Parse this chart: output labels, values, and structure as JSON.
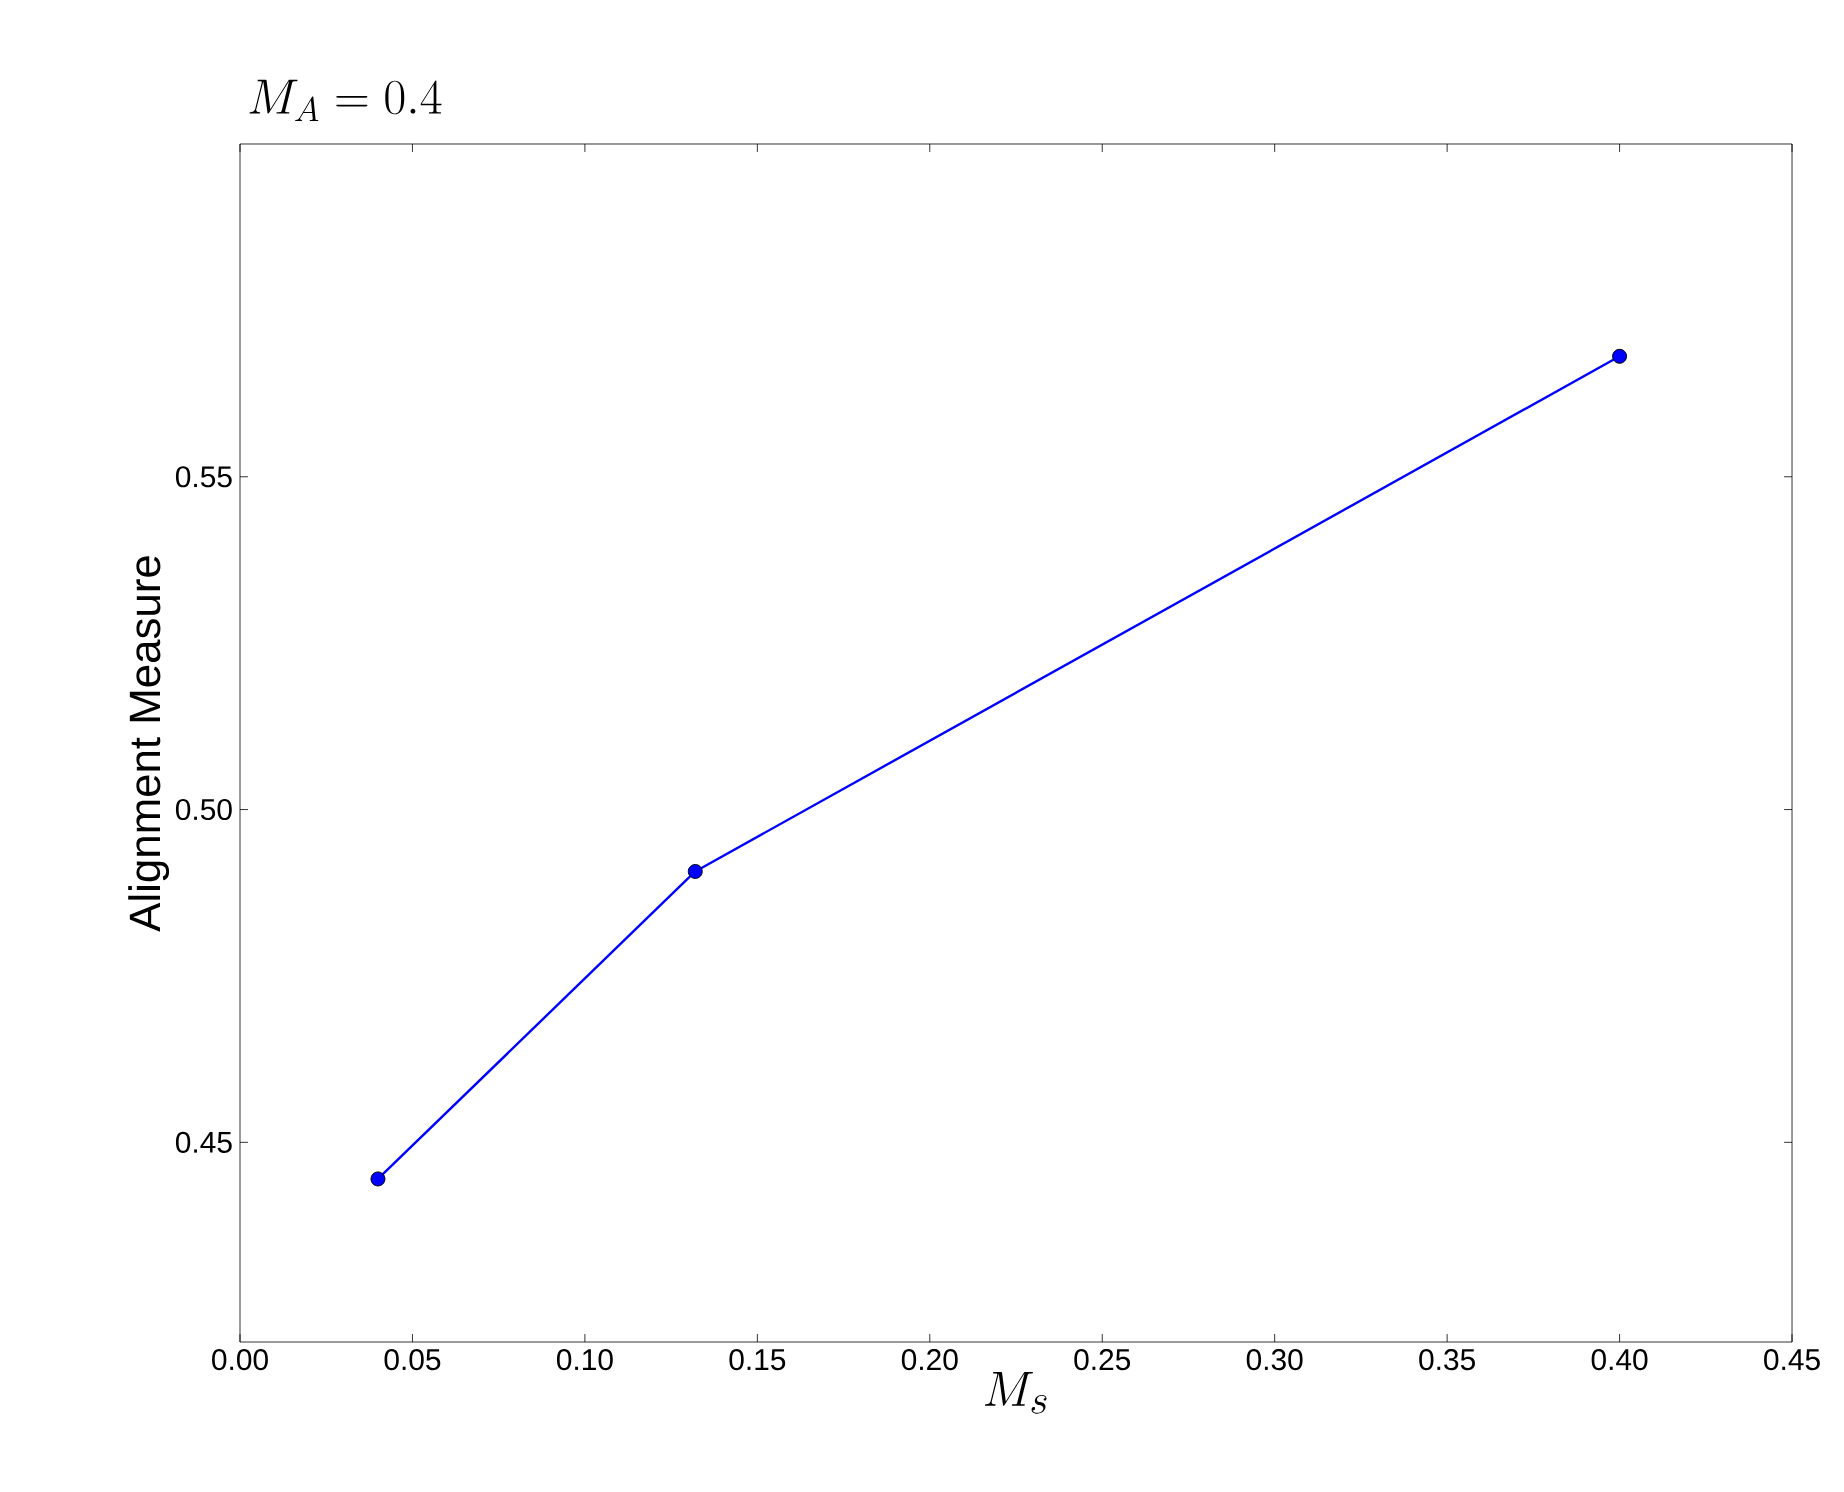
{
  "chart_data": {
    "type": "line",
    "title": "M_A = 0.4",
    "xlabel": "M_s",
    "ylabel": "Alignment Measure",
    "x": [
      0.04,
      0.132,
      0.4
    ],
    "series": [
      {
        "color": "#0000ff",
        "values": [
          0.4445,
          0.4907,
          0.5681
        ]
      }
    ],
    "marker": "circle",
    "line_style": "solid",
    "grid": false,
    "xlim": [
      0.0,
      0.45
    ],
    "ylim": [
      0.42,
      0.6
    ],
    "xticks": [
      {
        "value": 0.0,
        "label": "0.00"
      },
      0.05,
      {
        "value": 0.1,
        "label": "0.10"
      },
      0.15,
      {
        "value": 0.2,
        "label": "0.20"
      },
      0.25,
      {
        "value": 0.3,
        "label": "0.30"
      },
      0.35,
      {
        "value": 0.4,
        "label": "0.40"
      },
      0.45
    ],
    "yticks": [
      0.45,
      {
        "value": 0.5,
        "label": "0.50"
      },
      0.55
    ]
  }
}
